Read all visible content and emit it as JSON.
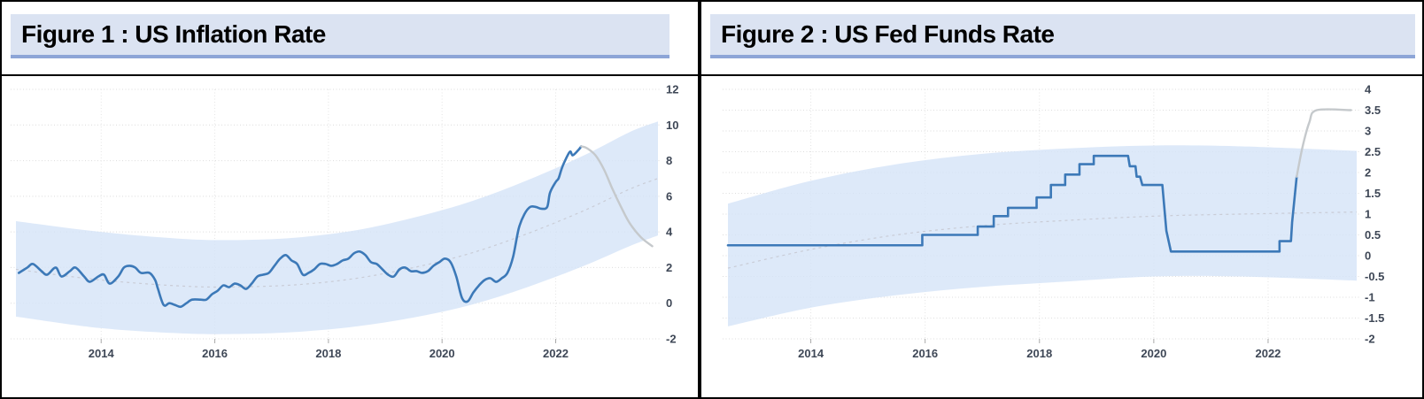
{
  "figure_labels": {
    "figure1_title": "Figure 1 : US Inflation Rate",
    "figure2_title": "Figure 2 : US Fed Funds Rate"
  },
  "colors": {
    "title_bar_bg": "#dbe3f2",
    "title_bar_underline": "#8da5d7",
    "history_line": "#3c79b8",
    "forecast_line": "#c5c9cc",
    "trend_line": "#c9ccd6",
    "band_fill": "#d4e3f8",
    "grid_line": "#dcdcdc",
    "axis_label": "#3e4756",
    "panel_border": "#000000"
  },
  "panels": [
    {
      "title": "Figure 1 : US Inflation Rate"
    },
    {
      "title": "Figure 2 : US Fed Funds Rate"
    }
  ],
  "chart_data": [
    {
      "type": "line",
      "title": "Figure 1 : US Inflation Rate",
      "xlabel": "",
      "ylabel": "",
      "x_range": [
        2012.5,
        2023.8
      ],
      "y_range": [
        -2,
        12
      ],
      "grid": true,
      "legend": false,
      "x_ticks": [
        {
          "value": 2014,
          "label": "2014"
        },
        {
          "value": 2016,
          "label": "2016"
        },
        {
          "value": 2018,
          "label": "2018"
        },
        {
          "value": 2020,
          "label": "2020"
        },
        {
          "value": 2022,
          "label": "2022"
        }
      ],
      "y_ticks": [
        {
          "value": 12,
          "label": "12"
        },
        {
          "value": 10,
          "label": "10"
        },
        {
          "value": 8,
          "label": "8"
        },
        {
          "value": 6,
          "label": "6"
        },
        {
          "value": 4,
          "label": "4"
        },
        {
          "value": 2,
          "label": "2"
        },
        {
          "value": 0,
          "label": "0"
        },
        {
          "value": -2,
          "label": "-2"
        }
      ],
      "band": {
        "name": "forecast-confidence-band",
        "fill": "#d4e3f8",
        "upper": [
          [
            2012.5,
            4.6
          ],
          [
            2014,
            4.0
          ],
          [
            2015.5,
            3.6
          ],
          [
            2016.5,
            3.55
          ],
          [
            2017.5,
            3.7
          ],
          [
            2018.5,
            4.1
          ],
          [
            2019.5,
            4.8
          ],
          [
            2020.5,
            5.7
          ],
          [
            2021.5,
            6.9
          ],
          [
            2022.5,
            8.3
          ],
          [
            2023.3,
            9.6
          ],
          [
            2023.8,
            10.2
          ]
        ],
        "lower": [
          [
            2012.5,
            -0.75
          ],
          [
            2014,
            -1.4
          ],
          [
            2015.5,
            -1.7
          ],
          [
            2016.5,
            -1.72
          ],
          [
            2017.5,
            -1.6
          ],
          [
            2018.5,
            -1.3
          ],
          [
            2019.5,
            -0.8
          ],
          [
            2020.5,
            -0.1
          ],
          [
            2021.5,
            0.9
          ],
          [
            2022.5,
            2.1
          ],
          [
            2023.3,
            3.2
          ],
          [
            2023.8,
            3.8
          ]
        ]
      },
      "series": [
        {
          "name": "trend-midline",
          "color": "#c9ccd6",
          "style": "dashed",
          "smooth": true,
          "points": [
            [
              2012.5,
              1.9
            ],
            [
              2014,
              1.3
            ],
            [
              2015.5,
              0.95
            ],
            [
              2016.5,
              0.92
            ],
            [
              2017.5,
              1.05
            ],
            [
              2018.5,
              1.4
            ],
            [
              2019.5,
              2.0
            ],
            [
              2020.5,
              2.8
            ],
            [
              2021.5,
              3.9
            ],
            [
              2022.5,
              5.2
            ],
            [
              2023.3,
              6.4
            ],
            [
              2023.8,
              7.0
            ]
          ]
        },
        {
          "name": "us-inflation-rate-history",
          "color": "#3c79b8",
          "width": 2.6,
          "smooth": true,
          "points": [
            [
              2012.55,
              1.7
            ],
            [
              2012.7,
              2.0
            ],
            [
              2012.8,
              2.2
            ],
            [
              2012.95,
              1.8
            ],
            [
              2013.05,
              1.6
            ],
            [
              2013.2,
              2.0
            ],
            [
              2013.3,
              1.5
            ],
            [
              2013.45,
              1.8
            ],
            [
              2013.55,
              2.0
            ],
            [
              2013.7,
              1.5
            ],
            [
              2013.8,
              1.2
            ],
            [
              2013.95,
              1.5
            ],
            [
              2014.05,
              1.6
            ],
            [
              2014.15,
              1.1
            ],
            [
              2014.3,
              1.5
            ],
            [
              2014.4,
              2.0
            ],
            [
              2014.5,
              2.1
            ],
            [
              2014.6,
              2.0
            ],
            [
              2014.7,
              1.7
            ],
            [
              2014.85,
              1.7
            ],
            [
              2014.95,
              1.3
            ],
            [
              2015.0,
              0.8
            ],
            [
              2015.1,
              -0.1
            ],
            [
              2015.2,
              0.0
            ],
            [
              2015.3,
              -0.1
            ],
            [
              2015.4,
              -0.2
            ],
            [
              2015.5,
              0.0
            ],
            [
              2015.6,
              0.2
            ],
            [
              2015.75,
              0.2
            ],
            [
              2015.85,
              0.2
            ],
            [
              2015.95,
              0.5
            ],
            [
              2016.05,
              0.7
            ],
            [
              2016.15,
              1.0
            ],
            [
              2016.25,
              0.9
            ],
            [
              2016.35,
              1.1
            ],
            [
              2016.45,
              1.0
            ],
            [
              2016.55,
              0.8
            ],
            [
              2016.65,
              1.1
            ],
            [
              2016.75,
              1.5
            ],
            [
              2016.85,
              1.6
            ],
            [
              2016.95,
              1.7
            ],
            [
              2017.05,
              2.1
            ],
            [
              2017.15,
              2.5
            ],
            [
              2017.25,
              2.7
            ],
            [
              2017.35,
              2.4
            ],
            [
              2017.45,
              2.2
            ],
            [
              2017.55,
              1.6
            ],
            [
              2017.65,
              1.7
            ],
            [
              2017.75,
              1.9
            ],
            [
              2017.85,
              2.2
            ],
            [
              2017.95,
              2.2
            ],
            [
              2018.05,
              2.1
            ],
            [
              2018.15,
              2.2
            ],
            [
              2018.25,
              2.4
            ],
            [
              2018.35,
              2.5
            ],
            [
              2018.45,
              2.8
            ],
            [
              2018.55,
              2.9
            ],
            [
              2018.65,
              2.7
            ],
            [
              2018.75,
              2.3
            ],
            [
              2018.85,
              2.2
            ],
            [
              2018.95,
              1.9
            ],
            [
              2019.05,
              1.6
            ],
            [
              2019.15,
              1.5
            ],
            [
              2019.25,
              1.9
            ],
            [
              2019.35,
              2.0
            ],
            [
              2019.45,
              1.8
            ],
            [
              2019.55,
              1.8
            ],
            [
              2019.65,
              1.7
            ],
            [
              2019.75,
              1.8
            ],
            [
              2019.85,
              2.1
            ],
            [
              2019.95,
              2.3
            ],
            [
              2020.05,
              2.5
            ],
            [
              2020.15,
              2.3
            ],
            [
              2020.25,
              1.5
            ],
            [
              2020.35,
              0.3
            ],
            [
              2020.45,
              0.1
            ],
            [
              2020.55,
              0.6
            ],
            [
              2020.65,
              1.0
            ],
            [
              2020.75,
              1.3
            ],
            [
              2020.85,
              1.4
            ],
            [
              2020.95,
              1.2
            ],
            [
              2021.05,
              1.4
            ],
            [
              2021.15,
              1.7
            ],
            [
              2021.25,
              2.6
            ],
            [
              2021.35,
              4.2
            ],
            [
              2021.45,
              5.0
            ],
            [
              2021.55,
              5.4
            ],
            [
              2021.65,
              5.4
            ],
            [
              2021.75,
              5.3
            ],
            [
              2021.85,
              5.4
            ],
            [
              2021.9,
              6.2
            ],
            [
              2022.0,
              6.8
            ],
            [
              2022.05,
              7.0
            ],
            [
              2022.1,
              7.5
            ],
            [
              2022.15,
              7.9
            ],
            [
              2022.25,
              8.5
            ],
            [
              2022.3,
              8.3
            ],
            [
              2022.4,
              8.6
            ],
            [
              2022.45,
              8.8
            ]
          ]
        },
        {
          "name": "us-inflation-rate-forecast",
          "color": "#c5c9cc",
          "width": 2.4,
          "smooth": true,
          "points": [
            [
              2022.45,
              8.8
            ],
            [
              2022.55,
              8.7
            ],
            [
              2022.7,
              8.3
            ],
            [
              2022.85,
              7.5
            ],
            [
              2023.0,
              6.4
            ],
            [
              2023.15,
              5.4
            ],
            [
              2023.3,
              4.5
            ],
            [
              2023.5,
              3.7
            ],
            [
              2023.7,
              3.2
            ]
          ]
        }
      ]
    },
    {
      "type": "line",
      "title": "Figure 2 : US Fed Funds Rate",
      "xlabel": "",
      "ylabel": "",
      "x_range": [
        2012.55,
        2023.55
      ],
      "y_range": [
        -2,
        4
      ],
      "grid": true,
      "legend": false,
      "x_ticks": [
        {
          "value": 2014,
          "label": "2014"
        },
        {
          "value": 2016,
          "label": "2016"
        },
        {
          "value": 2018,
          "label": "2018"
        },
        {
          "value": 2020,
          "label": "2020"
        },
        {
          "value": 2022,
          "label": "2022"
        }
      ],
      "y_ticks": [
        {
          "value": 4,
          "label": "4"
        },
        {
          "value": 3.5,
          "label": "3.5"
        },
        {
          "value": 3,
          "label": "3"
        },
        {
          "value": 2.5,
          "label": "2.5"
        },
        {
          "value": 2,
          "label": "2"
        },
        {
          "value": 1.5,
          "label": "1.5"
        },
        {
          "value": 1,
          "label": "1"
        },
        {
          "value": 0.5,
          "label": "0.5"
        },
        {
          "value": 0,
          "label": "0"
        },
        {
          "value": -0.5,
          "label": "-0.5"
        },
        {
          "value": -1,
          "label": "-1"
        },
        {
          "value": -1.5,
          "label": "-1.5"
        },
        {
          "value": -2,
          "label": "-2"
        }
      ],
      "band": {
        "name": "forecast-confidence-band",
        "fill": "#d4e3f8",
        "upper": [
          [
            2012.55,
            1.25
          ],
          [
            2014,
            1.8
          ],
          [
            2015.5,
            2.2
          ],
          [
            2017,
            2.45
          ],
          [
            2018.5,
            2.58
          ],
          [
            2020,
            2.65
          ],
          [
            2021.5,
            2.63
          ],
          [
            2023.55,
            2.52
          ]
        ],
        "lower": [
          [
            2012.55,
            -1.7
          ],
          [
            2014,
            -1.25
          ],
          [
            2015.5,
            -0.95
          ],
          [
            2017,
            -0.75
          ],
          [
            2018.5,
            -0.62
          ],
          [
            2020,
            -0.5
          ],
          [
            2021.5,
            -0.5
          ],
          [
            2023.55,
            -0.6
          ]
        ]
      },
      "series": [
        {
          "name": "trend-midline",
          "color": "#c9ccd6",
          "style": "dashed",
          "smooth": true,
          "points": [
            [
              2012.55,
              -0.3
            ],
            [
              2014,
              0.15
            ],
            [
              2015.5,
              0.5
            ],
            [
              2017,
              0.72
            ],
            [
              2018.5,
              0.85
            ],
            [
              2020,
              0.95
            ],
            [
              2021.5,
              1.0
            ],
            [
              2023.55,
              1.05
            ]
          ]
        },
        {
          "name": "us-fed-funds-rate-history",
          "color": "#3c79b8",
          "width": 2.6,
          "smooth": false,
          "points": [
            [
              2012.55,
              0.25
            ],
            [
              2015.95,
              0.25
            ],
            [
              2015.95,
              0.5
            ],
            [
              2016.92,
              0.5
            ],
            [
              2016.92,
              0.7
            ],
            [
              2017.2,
              0.7
            ],
            [
              2017.2,
              0.95
            ],
            [
              2017.45,
              0.95
            ],
            [
              2017.45,
              1.15
            ],
            [
              2017.95,
              1.15
            ],
            [
              2017.95,
              1.4
            ],
            [
              2018.2,
              1.4
            ],
            [
              2018.2,
              1.7
            ],
            [
              2018.45,
              1.7
            ],
            [
              2018.45,
              1.95
            ],
            [
              2018.7,
              1.95
            ],
            [
              2018.7,
              2.2
            ],
            [
              2018.95,
              2.2
            ],
            [
              2018.95,
              2.4
            ],
            [
              2019.55,
              2.4
            ],
            [
              2019.58,
              2.15
            ],
            [
              2019.68,
              2.15
            ],
            [
              2019.7,
              1.9
            ],
            [
              2019.76,
              1.9
            ],
            [
              2019.8,
              1.7
            ],
            [
              2020.15,
              1.7
            ],
            [
              2020.22,
              0.6
            ],
            [
              2020.3,
              0.1
            ],
            [
              2022.2,
              0.1
            ],
            [
              2022.2,
              0.35
            ],
            [
              2022.4,
              0.35
            ],
            [
              2022.42,
              0.8
            ],
            [
              2022.5,
              1.9
            ]
          ]
        },
        {
          "name": "us-fed-funds-rate-forecast",
          "color": "#c5c9cc",
          "width": 2.4,
          "smooth": true,
          "points": [
            [
              2022.5,
              1.9
            ],
            [
              2022.6,
              2.6
            ],
            [
              2022.72,
              3.2
            ],
            [
              2022.85,
              3.5
            ],
            [
              2023.45,
              3.5
            ]
          ]
        }
      ]
    }
  ]
}
